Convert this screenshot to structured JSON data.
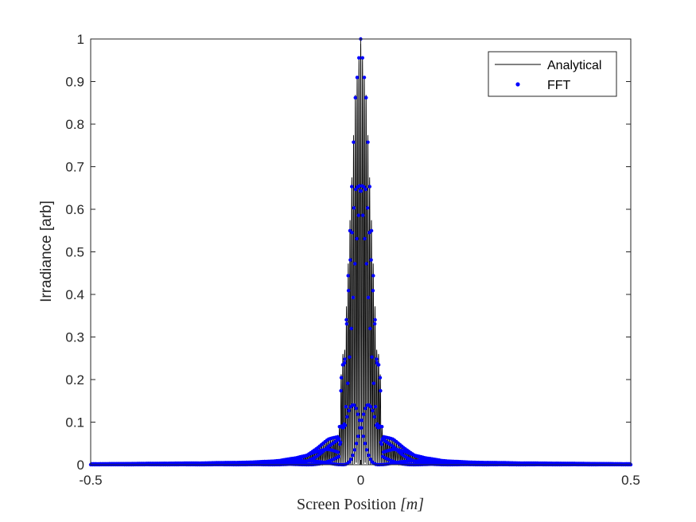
{
  "chart_data": {
    "type": "line",
    "title": "",
    "xlabel": "Screen Position [m]",
    "xlabel_plain": "Screen Position ",
    "xlabel_unit": "[m]",
    "ylabel": "Irradiance [arb]",
    "xlim": [
      -0.5,
      0.5
    ],
    "ylim": [
      0,
      1
    ],
    "xticks": [
      -0.5,
      0,
      0.5
    ],
    "xtick_labels": [
      "-0.5",
      "0",
      "0.5"
    ],
    "yticks": [
      0,
      0.1,
      0.2,
      0.3,
      0.4,
      0.5,
      0.6,
      0.7,
      0.8,
      0.9,
      1
    ],
    "ytick_labels": [
      "0",
      "0.1",
      "0.2",
      "0.3",
      "0.4",
      "0.5",
      "0.6",
      "0.7",
      "0.8",
      "0.9",
      "1"
    ],
    "grid": false,
    "legend_position": "top-right",
    "series": [
      {
        "name": "Analytical",
        "style": "line",
        "color": "#000000",
        "envelope_x": [
          -0.5,
          -0.4,
          -0.3,
          -0.2,
          -0.15,
          -0.12,
          -0.1,
          -0.08,
          -0.06,
          -0.04,
          -0.035,
          -0.03,
          -0.02,
          -0.01,
          0,
          0.01,
          0.02,
          0.03,
          0.035,
          0.04,
          0.06,
          0.08,
          0.1,
          0.12,
          0.15,
          0.2,
          0.3,
          0.4,
          0.5
        ],
        "envelope_y": [
          0.002,
          0.003,
          0.004,
          0.006,
          0.01,
          0.016,
          0.024,
          0.04,
          0.06,
          0.07,
          0.26,
          0.26,
          0.57,
          0.87,
          1.0,
          0.87,
          0.57,
          0.26,
          0.26,
          0.07,
          0.06,
          0.04,
          0.024,
          0.016,
          0.01,
          0.006,
          0.004,
          0.003,
          0.002
        ],
        "fringe_period": 0.0033
      },
      {
        "name": "FFT",
        "style": "dots",
        "color": "#0000ff",
        "envelope_x": [
          -0.5,
          -0.4,
          -0.3,
          -0.2,
          -0.15,
          -0.12,
          -0.1,
          -0.08,
          -0.06,
          -0.04,
          -0.035,
          -0.03,
          -0.02,
          -0.01,
          0,
          0.01,
          0.02,
          0.03,
          0.035,
          0.04,
          0.06,
          0.08,
          0.1,
          0.12,
          0.15,
          0.2,
          0.3,
          0.4,
          0.5
        ],
        "envelope_y": [
          0.002,
          0.003,
          0.004,
          0.006,
          0.01,
          0.016,
          0.024,
          0.04,
          0.06,
          0.07,
          0.26,
          0.26,
          0.57,
          0.87,
          1.0,
          0.87,
          0.57,
          0.26,
          0.26,
          0.07,
          0.06,
          0.04,
          0.024,
          0.016,
          0.01,
          0.006,
          0.004,
          0.003,
          0.002
        ],
        "fringe_period": 0.0033
      }
    ]
  }
}
